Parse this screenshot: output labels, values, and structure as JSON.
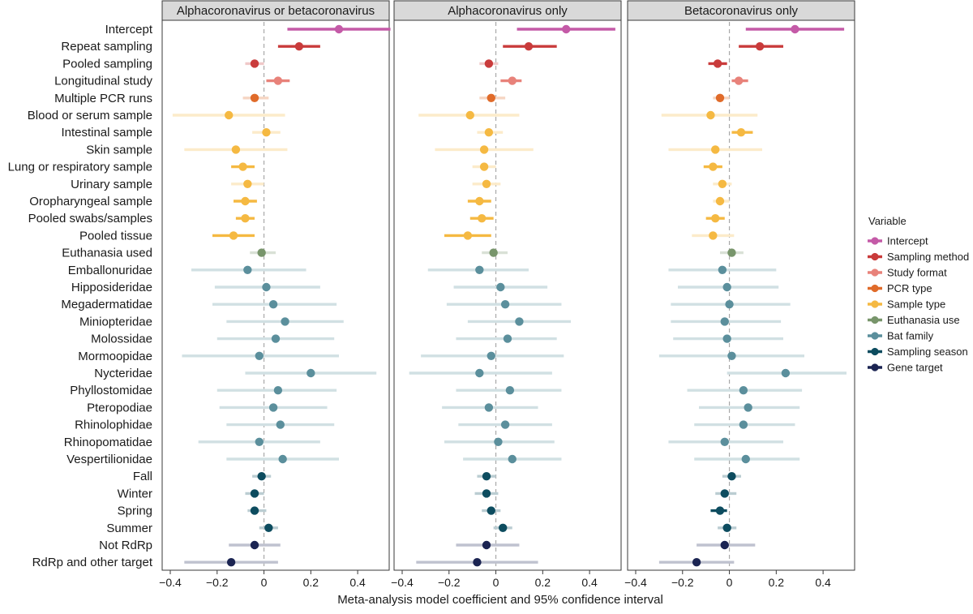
{
  "chart_data": {
    "type": "forest",
    "xlabel": "Meta-analysis model coefficient and 95% confidence interval",
    "xlim": [
      -0.4,
      0.5
    ],
    "xticks": [
      -0.4,
      -0.2,
      0,
      0.2,
      0.4
    ],
    "xtick_labels": [
      "−0.4",
      "−0.2",
      "0",
      "0.2",
      "0.4"
    ],
    "reference_line": 0,
    "legend": {
      "title": "Variable",
      "placement": "right",
      "items": [
        {
          "name": "Intercept",
          "color": "#c45aa7"
        },
        {
          "name": "Sampling method",
          "color": "#c93b3b"
        },
        {
          "name": "Study format",
          "color": "#e8827a"
        },
        {
          "name": "PCR type",
          "color": "#e06b2a"
        },
        {
          "name": "Sample type",
          "color": "#f5b942"
        },
        {
          "name": "Euthanasia use",
          "color": "#78956b"
        },
        {
          "name": "Bat family",
          "color": "#5b8f9c"
        },
        {
          "name": "Sampling season",
          "color": "#0d4c5f"
        },
        {
          "name": "Gene target",
          "color": "#1b2452"
        }
      ]
    },
    "rows": [
      {
        "label": "Intercept",
        "group": 0
      },
      {
        "label": "Repeat sampling",
        "group": 1
      },
      {
        "label": "Pooled sampling",
        "group": 1
      },
      {
        "label": "Longitudinal study",
        "group": 2
      },
      {
        "label": "Multiple PCR runs",
        "group": 3
      },
      {
        "label": "Blood or serum sample",
        "group": 4
      },
      {
        "label": "Intestinal sample",
        "group": 4
      },
      {
        "label": "Skin sample",
        "group": 4
      },
      {
        "label": "Lung or respiratory sample",
        "group": 4
      },
      {
        "label": "Urinary sample",
        "group": 4
      },
      {
        "label": "Oropharyngeal sample",
        "group": 4
      },
      {
        "label": "Pooled swabs/samples",
        "group": 4
      },
      {
        "label": "Pooled tissue",
        "group": 4
      },
      {
        "label": "Euthanasia used",
        "group": 5
      },
      {
        "label": "Emballonuridae",
        "group": 6
      },
      {
        "label": "Hipposideridae",
        "group": 6
      },
      {
        "label": "Megadermatidae",
        "group": 6
      },
      {
        "label": "Miniopteridae",
        "group": 6
      },
      {
        "label": "Molossidae",
        "group": 6
      },
      {
        "label": "Mormoopidae",
        "group": 6
      },
      {
        "label": "Nycteridae",
        "group": 6
      },
      {
        "label": "Phyllostomidae",
        "group": 6
      },
      {
        "label": "Pteropodiae",
        "group": 6
      },
      {
        "label": "Rhinolophidae",
        "group": 6
      },
      {
        "label": "Rhinopomatidae",
        "group": 6
      },
      {
        "label": "Vespertilionidae",
        "group": 6
      },
      {
        "label": "Fall",
        "group": 7
      },
      {
        "label": "Winter",
        "group": 7
      },
      {
        "label": "Spring",
        "group": 7
      },
      {
        "label": "Summer",
        "group": 7
      },
      {
        "label": "Not RdRp",
        "group": 8
      },
      {
        "label": "RdRp and other target",
        "group": 8
      }
    ],
    "panels": [
      {
        "title": "Alphacoronavirus or betacoronavirus",
        "estimates": [
          [
            0.32,
            0.1,
            0.54
          ],
          [
            0.15,
            0.06,
            0.24
          ],
          [
            -0.04,
            -0.08,
            0.0
          ],
          [
            0.06,
            0.01,
            0.11
          ],
          [
            -0.04,
            -0.09,
            0.02
          ],
          [
            -0.15,
            -0.39,
            0.09
          ],
          [
            0.01,
            -0.05,
            0.07
          ],
          [
            -0.12,
            -0.34,
            0.1
          ],
          [
            -0.09,
            -0.14,
            -0.04
          ],
          [
            -0.07,
            -0.14,
            0.0
          ],
          [
            -0.08,
            -0.13,
            -0.03
          ],
          [
            -0.08,
            -0.12,
            -0.04
          ],
          [
            -0.13,
            -0.22,
            -0.04
          ],
          [
            -0.01,
            -0.06,
            0.05
          ],
          [
            -0.07,
            -0.31,
            0.18
          ],
          [
            0.01,
            -0.21,
            0.24
          ],
          [
            0.04,
            -0.22,
            0.31
          ],
          [
            0.09,
            -0.16,
            0.34
          ],
          [
            0.05,
            -0.2,
            0.3
          ],
          [
            -0.02,
            -0.35,
            0.32
          ],
          [
            0.2,
            -0.08,
            0.48
          ],
          [
            0.06,
            -0.2,
            0.31
          ],
          [
            0.04,
            -0.19,
            0.27
          ],
          [
            0.07,
            -0.16,
            0.3
          ],
          [
            -0.02,
            -0.28,
            0.24
          ],
          [
            0.08,
            -0.16,
            0.32
          ],
          [
            -0.01,
            -0.05,
            0.03
          ],
          [
            -0.04,
            -0.08,
            0.0
          ],
          [
            -0.04,
            -0.07,
            0.01
          ],
          [
            0.02,
            -0.02,
            0.06
          ],
          [
            -0.04,
            -0.15,
            0.07
          ],
          [
            -0.14,
            -0.34,
            0.06
          ]
        ]
      },
      {
        "title": "Alphacoronavirus only",
        "estimates": [
          [
            0.3,
            0.09,
            0.51
          ],
          [
            0.14,
            0.03,
            0.26
          ],
          [
            -0.03,
            -0.07,
            0.01
          ],
          [
            0.07,
            0.02,
            0.11
          ],
          [
            -0.02,
            -0.07,
            0.04
          ],
          [
            -0.11,
            -0.33,
            0.1
          ],
          [
            -0.03,
            -0.08,
            0.03
          ],
          [
            -0.05,
            -0.26,
            0.16
          ],
          [
            -0.05,
            -0.1,
            0.0
          ],
          [
            -0.04,
            -0.1,
            0.02
          ],
          [
            -0.07,
            -0.12,
            -0.02
          ],
          [
            -0.06,
            -0.11,
            -0.01
          ],
          [
            -0.12,
            -0.22,
            -0.02
          ],
          [
            -0.01,
            -0.06,
            0.05
          ],
          [
            -0.07,
            -0.29,
            0.14
          ],
          [
            0.02,
            -0.18,
            0.22
          ],
          [
            0.04,
            -0.21,
            0.28
          ],
          [
            0.1,
            -0.12,
            0.32
          ],
          [
            0.05,
            -0.17,
            0.26
          ],
          [
            -0.02,
            -0.32,
            0.29
          ],
          [
            -0.07,
            -0.37,
            0.24
          ],
          [
            0.06,
            -0.17,
            0.28
          ],
          [
            -0.03,
            -0.23,
            0.18
          ],
          [
            0.04,
            -0.16,
            0.24
          ],
          [
            0.01,
            -0.22,
            0.25
          ],
          [
            0.07,
            -0.14,
            0.28
          ],
          [
            -0.04,
            -0.08,
            0.0
          ],
          [
            -0.04,
            -0.09,
            0.01
          ],
          [
            -0.02,
            -0.06,
            0.02
          ],
          [
            0.03,
            -0.01,
            0.07
          ],
          [
            -0.04,
            -0.17,
            0.1
          ],
          [
            -0.08,
            -0.34,
            0.18
          ]
        ]
      },
      {
        "title": "Betacoronavirus only",
        "estimates": [
          [
            0.28,
            0.07,
            0.49
          ],
          [
            0.13,
            0.04,
            0.23
          ],
          [
            -0.05,
            -0.09,
            -0.01
          ],
          [
            0.04,
            0.01,
            0.08
          ],
          [
            -0.04,
            -0.07,
            0.0
          ],
          [
            -0.08,
            -0.29,
            0.12
          ],
          [
            0.05,
            0.01,
            0.1
          ],
          [
            -0.06,
            -0.26,
            0.14
          ],
          [
            -0.07,
            -0.11,
            -0.03
          ],
          [
            -0.03,
            -0.07,
            0.01
          ],
          [
            -0.04,
            -0.07,
            0.0
          ],
          [
            -0.06,
            -0.1,
            -0.02
          ],
          [
            -0.07,
            -0.16,
            0.02
          ],
          [
            0.01,
            -0.04,
            0.06
          ],
          [
            -0.03,
            -0.26,
            0.2
          ],
          [
            -0.01,
            -0.22,
            0.21
          ],
          [
            0.0,
            -0.25,
            0.26
          ],
          [
            -0.02,
            -0.25,
            0.22
          ],
          [
            -0.01,
            -0.24,
            0.23
          ],
          [
            0.01,
            -0.3,
            0.32
          ],
          [
            0.24,
            -0.01,
            0.5
          ],
          [
            0.06,
            -0.18,
            0.31
          ],
          [
            0.08,
            -0.13,
            0.3
          ],
          [
            0.06,
            -0.15,
            0.28
          ],
          [
            -0.02,
            -0.26,
            0.23
          ],
          [
            0.07,
            -0.15,
            0.3
          ],
          [
            0.01,
            -0.03,
            0.05
          ],
          [
            -0.02,
            -0.06,
            0.03
          ],
          [
            -0.04,
            -0.08,
            -0.01
          ],
          [
            -0.01,
            -0.05,
            0.03
          ],
          [
            -0.02,
            -0.14,
            0.11
          ],
          [
            -0.14,
            -0.3,
            0.02
          ]
        ]
      }
    ]
  }
}
